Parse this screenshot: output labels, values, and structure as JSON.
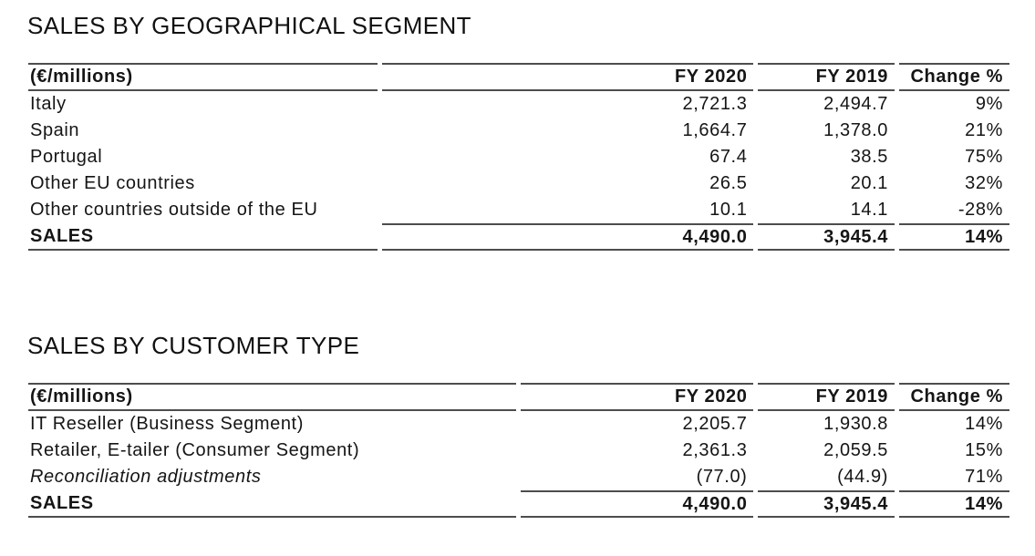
{
  "colors": {
    "background": "#ffffff",
    "text": "#151515",
    "rule": "#4d4d4d"
  },
  "tables": [
    {
      "title": "SALES BY GEOGRAPHICAL SEGMENT",
      "unit_label": "(€/millions)",
      "columns": [
        "FY 2020",
        "FY 2019",
        "Change %"
      ],
      "rows": [
        {
          "label": "Italy",
          "fy2020": "2,721.3",
          "fy2019": "2,494.7",
          "change": "9%"
        },
        {
          "label": "Spain",
          "fy2020": "1,664.7",
          "fy2019": "1,378.0",
          "change": "21%"
        },
        {
          "label": "Portugal",
          "fy2020": "67.4",
          "fy2019": "38.5",
          "change": "75%"
        },
        {
          "label": "Other EU countries",
          "fy2020": "26.5",
          "fy2019": "20.1",
          "change": "32%"
        },
        {
          "label": "Other countries outside of the EU",
          "fy2020": "10.1",
          "fy2019": "14.1",
          "change": "-28%"
        }
      ],
      "total": {
        "label": "SALES",
        "fy2020": "4,490.0",
        "fy2019": "3,945.4",
        "change": "14%"
      }
    },
    {
      "title": "SALES BY CUSTOMER TYPE",
      "unit_label": "(€/millions)",
      "columns": [
        "FY 2020",
        "FY 2019",
        "Change %"
      ],
      "rows": [
        {
          "label": "IT Reseller (Business Segment)",
          "fy2020": "2,205.7",
          "fy2019": "1,930.8",
          "change": "14%"
        },
        {
          "label": "Retailer, E-tailer (Consumer Segment)",
          "fy2020": "2,361.3",
          "fy2019": "2,059.5",
          "change": "15%"
        },
        {
          "label": "Reconciliation adjustments",
          "fy2020": "(77.0)",
          "fy2019": "(44.9)",
          "change": "71%"
        }
      ],
      "total": {
        "label": "SALES",
        "fy2020": "4,490.0",
        "fy2019": "3,945.4",
        "change": "14%"
      }
    }
  ]
}
